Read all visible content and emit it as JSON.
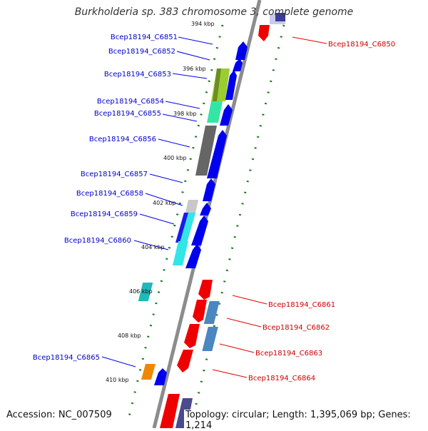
{
  "title": "Burkholderia sp. 383 chromosome 3, complete genome",
  "accession": "Accession: NC_007509",
  "topology": "Topology: circular; Length: 1,395,069 bp; Genes: 1,214",
  "colors": {
    "backbone": "#8c8c8c",
    "forward": "#0000ee",
    "reverse": "#ee0000",
    "ruler": "#1a7a1a",
    "label_forward": "#0000cc",
    "label_reverse": "#cc0000"
  },
  "ruler_labels": [
    "394 kbp",
    "396 kbp",
    "398 kbp",
    "400 kbp",
    "402 kbp",
    "404 kbp",
    "406 kbp",
    "408 kbp",
    "410 kbp"
  ],
  "genes_forward": [
    "Bcep18194_C6851",
    "Bcep18194_C6852",
    "Bcep18194_C6853",
    "Bcep18194_C6854",
    "Bcep18194_C6855",
    "Bcep18194_C6856",
    "Bcep18194_C6857",
    "Bcep18194_C6858",
    "Bcep18194_C6859",
    "Bcep18194_C6860",
    "Bcep18194_C6865"
  ],
  "genes_reverse": [
    "Bcep18194_C6850",
    "Bcep18194_C6861",
    "Bcep18194_C6862",
    "Bcep18194_C6863",
    "Bcep18194_C6864"
  ]
}
